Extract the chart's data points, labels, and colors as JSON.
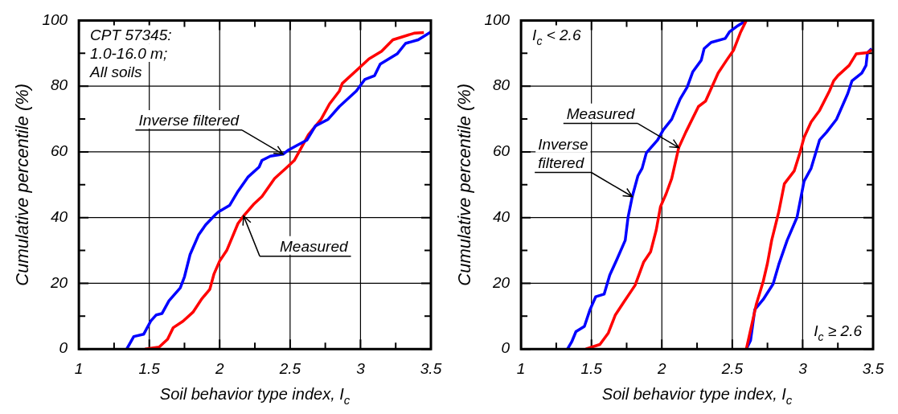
{
  "chart_data": [
    {
      "type": "line",
      "xlabel": "Soil behavior type index, I$_{c}$",
      "ylabel": "Cumulative percentile (%)",
      "xlim": [
        1,
        3.5
      ],
      "ylim": [
        0,
        100
      ],
      "xticks": [
        1,
        {
          "value": 1.25,
          "label": null
        },
        1.5,
        {
          "value": 1.75,
          "label": null
        },
        2,
        {
          "value": 2.25,
          "label": null
        },
        2.5,
        {
          "value": 2.75,
          "label": null
        },
        3,
        {
          "value": 3.25,
          "label": null
        },
        3.5
      ],
      "yticks": [
        0,
        {
          "value": 10,
          "label": null
        },
        20,
        {
          "value": 30,
          "label": null
        },
        40,
        {
          "value": 50,
          "label": null
        },
        60,
        {
          "value": 70,
          "label": null
        },
        80,
        {
          "value": 90,
          "label": null
        },
        100
      ],
      "grid": true,
      "annotations": [
        "CPT 57345:\n1.0-16.0 m;\nAll soils"
      ],
      "series": [
        {
          "name": "Inverse filtered",
          "color": "#0000ff",
          "x": [
            1.34,
            1.39,
            1.46,
            1.51,
            1.55,
            1.59,
            1.64,
            1.72,
            1.75,
            1.79,
            1.85,
            1.9,
            1.97,
            1.99,
            2.07,
            2.13,
            2.2,
            2.28,
            2.3,
            2.36,
            2.45,
            2.49,
            2.55,
            2.62,
            2.68,
            2.77,
            2.85,
            2.97,
            3.03,
            3.1,
            3.14,
            3.26,
            3.32,
            3.41,
            3.5
          ],
          "values": [
            0,
            3.8,
            4.5,
            8.5,
            10.4,
            10.8,
            14.7,
            18.6,
            22,
            28.8,
            34.7,
            37.8,
            40.9,
            41.7,
            43.7,
            48,
            52.3,
            55.4,
            57.4,
            58.7,
            59.3,
            60.6,
            62,
            63.6,
            67.9,
            69.9,
            73.8,
            78.5,
            82,
            83.2,
            86.7,
            89.8,
            93,
            94.1,
            96.5
          ]
        },
        {
          "name": "Measured",
          "color": "#ff0000",
          "x": [
            1.47,
            1.57,
            1.63,
            1.67,
            1.74,
            1.81,
            1.87,
            1.93,
            1.96,
            2,
            2.05,
            2.13,
            2.17,
            2.24,
            2.3,
            2.39,
            2.48,
            2.53,
            2.58,
            2.63,
            2.72,
            2.78,
            2.85,
            2.87,
            3,
            3.06,
            3.15,
            3.23,
            3.29,
            3.38,
            3.45
          ],
          "values": [
            0,
            0.6,
            3,
            6.5,
            8.5,
            11.2,
            15.1,
            18.2,
            22.9,
            26.8,
            30,
            38.2,
            40.5,
            44,
            46.4,
            51.9,
            55.4,
            57.4,
            61.3,
            65.2,
            69.9,
            74.6,
            78.5,
            80.8,
            85.9,
            88.3,
            90.6,
            94.1,
            94.9,
            96.1,
            96.3
          ]
        }
      ]
    },
    {
      "type": "line",
      "xlabel": "Soil behavior type index, I$_{c}$",
      "ylabel": "Cumulative percentile (%)",
      "xlim": [
        1,
        3.5
      ],
      "ylim": [
        0,
        100
      ],
      "xticks": [
        1,
        {
          "value": 1.25,
          "label": null
        },
        1.5,
        {
          "value": 1.75,
          "label": null
        },
        2,
        {
          "value": 2.25,
          "label": null
        },
        2.5,
        {
          "value": 2.75,
          "label": null
        },
        3,
        {
          "value": 3.25,
          "label": null
        },
        3.5
      ],
      "yticks": [
        0,
        {
          "value": 10,
          "label": null
        },
        20,
        {
          "value": 30,
          "label": null
        },
        40,
        {
          "value": 50,
          "label": null
        },
        60,
        {
          "value": 70,
          "label": null
        },
        80,
        {
          "value": 90,
          "label": null
        },
        100
      ],
      "grid": true,
      "annotations": [
        "I$_{c}$ < 2.6",
        "I$_{c}$ ≥ 2.6"
      ],
      "series": [
        {
          "name": "Measured",
          "color": "#ff0000",
          "x": [
            1.46,
            1.56,
            1.62,
            1.67,
            1.73,
            1.81,
            1.87,
            1.92,
            1.96,
            1.99,
            2.03,
            2.07,
            2.12,
            2.17,
            2.26,
            2.31,
            2.4,
            2.46,
            2.51,
            2.56,
            2.6
          ],
          "values": [
            0,
            1.4,
            4.9,
            10.4,
            14.3,
            19.4,
            26.4,
            29.6,
            36.2,
            43.3,
            47.2,
            51.9,
            61.3,
            66,
            73.8,
            75.4,
            84,
            87.9,
            91,
            96.5,
            100
          ]
        },
        {
          "name": "Inverse filtered",
          "color": "#0000ff",
          "x": [
            1.33,
            1.36,
            1.39,
            1.45,
            1.49,
            1.53,
            1.59,
            1.63,
            1.68,
            1.74,
            1.76,
            1.79,
            1.83,
            1.86,
            1.89,
            1.97,
            2.01,
            2.07,
            2.13,
            2.18,
            2.22,
            2.28,
            2.3,
            2.35,
            2.45,
            2.48,
            2.54,
            2.6
          ],
          "values": [
            0,
            2.2,
            5.3,
            6.9,
            12,
            15.9,
            16.7,
            22.5,
            27.2,
            33.1,
            40.1,
            46.4,
            52.7,
            55,
            59.7,
            63.6,
            66.7,
            69.9,
            76.1,
            79.7,
            84.4,
            87.9,
            91.4,
            93.3,
            94.5,
            96.5,
            98.4,
            100
          ]
        },
        {
          "color": "#ff0000",
          "x": [
            2.6,
            2.67,
            2.72,
            2.75,
            2.78,
            2.83,
            2.87,
            2.94,
            2.98,
            3.01,
            3.06,
            3.12,
            3.19,
            3.22,
            3.25,
            3.33,
            3.38,
            3.46,
            3.49
          ],
          "values": [
            0,
            13.5,
            20.6,
            26.1,
            33.1,
            41.7,
            50.3,
            54.2,
            59.7,
            64.4,
            69.1,
            72.6,
            78.5,
            81.6,
            83.2,
            86.3,
            89.8,
            90.2,
            91
          ]
        },
        {
          "color": "#0000ff",
          "x": [
            2.6,
            2.63,
            2.66,
            2.72,
            2.79,
            2.83,
            2.89,
            2.96,
            3.01,
            3.06,
            3.12,
            3.17,
            3.24,
            3.28,
            3.32,
            3.35,
            3.42,
            3.45,
            3.46,
            3.49
          ],
          "values": [
            0,
            2.6,
            12,
            15.1,
            19.8,
            25.7,
            33.1,
            40.1,
            51.1,
            55,
            63.6,
            66,
            69.9,
            73.8,
            77.7,
            81.6,
            84,
            86.3,
            90.2,
            91.4
          ]
        }
      ]
    }
  ]
}
